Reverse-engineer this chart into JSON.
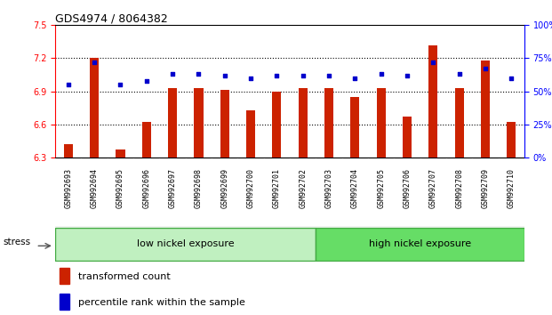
{
  "title": "GDS4974 / 8064382",
  "categories": [
    "GSM992693",
    "GSM992694",
    "GSM992695",
    "GSM992696",
    "GSM992697",
    "GSM992698",
    "GSM992699",
    "GSM992700",
    "GSM992701",
    "GSM992702",
    "GSM992703",
    "GSM992704",
    "GSM992705",
    "GSM992706",
    "GSM992707",
    "GSM992708",
    "GSM992709",
    "GSM992710"
  ],
  "red_values": [
    6.42,
    7.2,
    6.37,
    6.62,
    6.93,
    6.93,
    6.91,
    6.73,
    6.9,
    6.93,
    6.93,
    6.85,
    6.93,
    6.67,
    7.32,
    6.93,
    7.18,
    6.62
  ],
  "blue_values": [
    55,
    72,
    55,
    58,
    63,
    63,
    62,
    60,
    62,
    62,
    62,
    60,
    63,
    62,
    72,
    63,
    67,
    60
  ],
  "ylim_left": [
    6.3,
    7.5
  ],
  "ylim_right": [
    0,
    100
  ],
  "yticks_left": [
    6.3,
    6.6,
    6.9,
    7.2,
    7.5
  ],
  "yticks_right": [
    0,
    25,
    50,
    75,
    100
  ],
  "hlines": [
    6.6,
    6.9,
    7.2
  ],
  "bar_color": "#cc2200",
  "blue_color": "#0000cc",
  "low_nickel_end": 10,
  "low_nickel_label": "low nickel exposure",
  "high_nickel_label": "high nickel exposure",
  "stress_label": "stress",
  "legend_red": "transformed count",
  "legend_blue": "percentile rank within the sample",
  "tick_label_fontsize": 6.0,
  "title_fontsize": 9,
  "bar_width": 0.35,
  "xlim": [
    -0.5,
    17.5
  ],
  "gray_box_color": "#d8d8d8",
  "gray_box_edge": "#aaaaaa",
  "low_color": "#c0f0c0",
  "high_color": "#66dd66",
  "band_edge_color": "#44aa44"
}
